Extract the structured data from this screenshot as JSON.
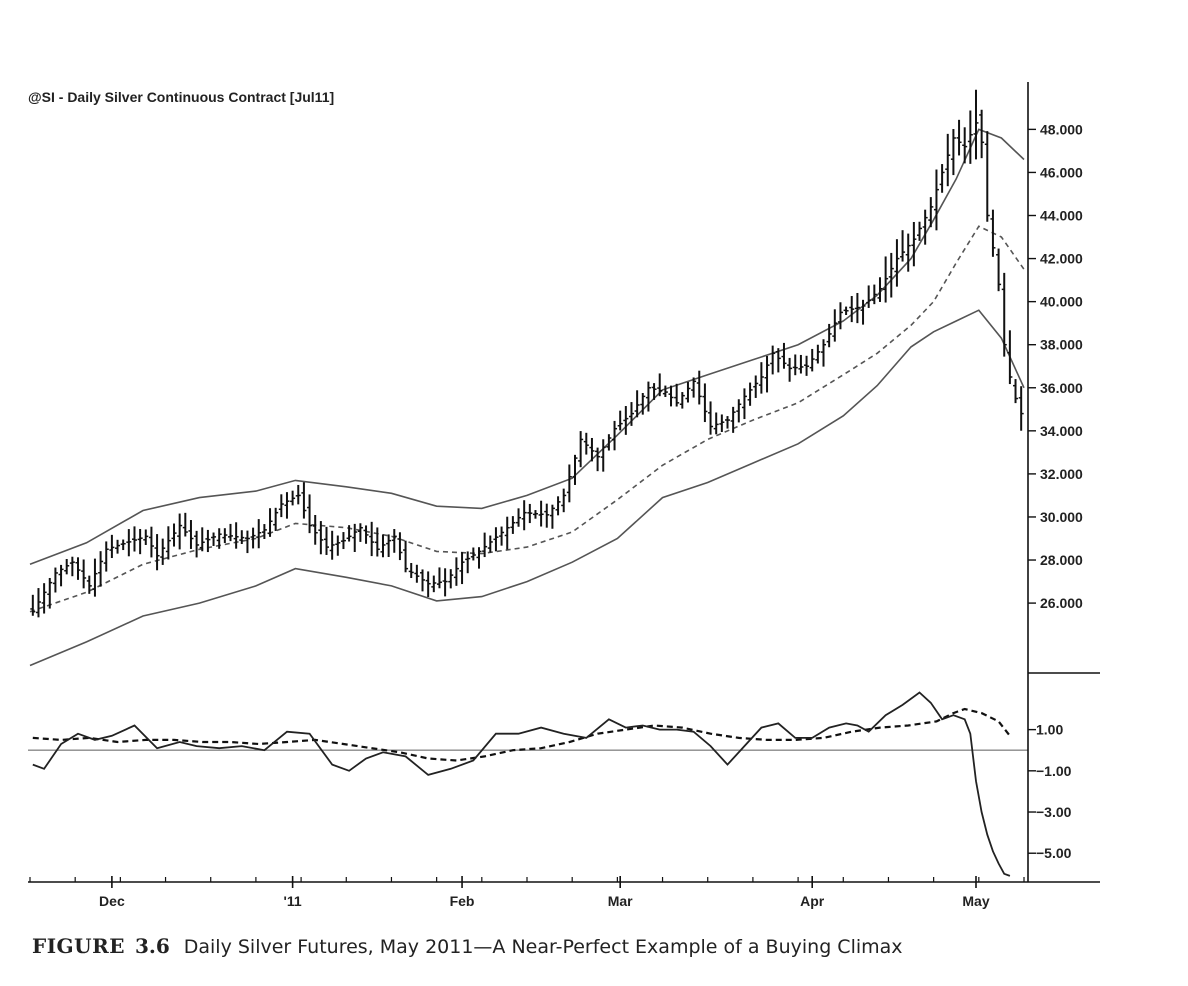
{
  "caption": {
    "label": "FIGURE",
    "number": "3.6",
    "text": "Daily Silver Futures, May 2011—A Near-Perfect Example of a Buying Climax"
  },
  "chart_data": [
    {
      "type": "ohlc",
      "title": "@SI - Daily  Silver Continuous Contract [Jul11]",
      "x_labels": [
        {
          "label": "Dec",
          "bar": 14
        },
        {
          "label": "'11",
          "bar": 46
        },
        {
          "label": "Feb",
          "bar": 76
        },
        {
          "label": "Mar",
          "bar": 104
        },
        {
          "label": "Apr",
          "bar": 138
        },
        {
          "label": "May",
          "bar": 167
        }
      ],
      "y_ticks": [
        "48.000",
        "46.000",
        "44.000",
        "42.000",
        "40.000",
        "38.000",
        "36.000",
        "34.000",
        "32.000",
        "30.000",
        "28.000",
        "26.000"
      ],
      "ylim": [
        22.8,
        50.2
      ],
      "bars_count": 176,
      "close_anchors": [
        [
          0,
          25.6
        ],
        [
          4,
          27.4
        ],
        [
          7,
          27.9
        ],
        [
          10,
          26.8
        ],
        [
          13,
          28.5
        ],
        [
          20,
          29.1
        ],
        [
          22,
          28.2
        ],
        [
          26,
          29.6
        ],
        [
          29,
          28.7
        ],
        [
          33,
          29.2
        ],
        [
          38,
          29.0
        ],
        [
          41,
          29.4
        ],
        [
          44,
          30.6
        ],
        [
          47,
          31.0
        ],
        [
          49,
          29.6
        ],
        [
          52,
          28.6
        ],
        [
          55,
          28.9
        ],
        [
          58,
          29.5
        ],
        [
          61,
          28.5
        ],
        [
          64,
          29.1
        ],
        [
          66,
          27.6
        ],
        [
          70,
          26.9
        ],
        [
          73,
          27.0
        ],
        [
          76,
          27.9
        ],
        [
          79,
          28.4
        ],
        [
          84,
          29.5
        ],
        [
          87,
          30.2
        ],
        [
          91,
          30.1
        ],
        [
          94,
          31.0
        ],
        [
          97,
          33.6
        ],
        [
          100,
          32.8
        ],
        [
          103,
          34.1
        ],
        [
          106,
          34.8
        ],
        [
          109,
          36.0
        ],
        [
          112,
          35.8
        ],
        [
          114,
          35.3
        ],
        [
          117,
          36.3
        ],
        [
          120,
          34.2
        ],
        [
          123,
          34.5
        ],
        [
          126,
          35.6
        ],
        [
          129,
          36.5
        ],
        [
          131,
          37.6
        ],
        [
          134,
          36.9
        ],
        [
          137,
          37.0
        ],
        [
          140,
          38.0
        ],
        [
          143,
          39.5
        ],
        [
          147,
          39.8
        ],
        [
          150,
          40.6
        ],
        [
          153,
          42.0
        ],
        [
          156,
          42.9
        ],
        [
          159,
          44.4
        ],
        [
          161,
          46.0
        ],
        [
          163,
          47.6
        ],
        [
          165,
          47.2
        ],
        [
          167,
          48.3
        ],
        [
          168,
          47.4
        ],
        [
          169,
          44.0
        ],
        [
          170,
          42.5
        ],
        [
          171,
          40.8
        ],
        [
          172,
          38.0
        ],
        [
          173,
          36.5
        ],
        [
          174,
          35.5
        ],
        [
          175,
          34.8
        ]
      ],
      "upper_band": [
        [
          0,
          27.8
        ],
        [
          10,
          28.8
        ],
        [
          20,
          30.3
        ],
        [
          30,
          30.9
        ],
        [
          40,
          31.2
        ],
        [
          47,
          31.7
        ],
        [
          56,
          31.4
        ],
        [
          64,
          31.1
        ],
        [
          72,
          30.5
        ],
        [
          80,
          30.4
        ],
        [
          88,
          31.0
        ],
        [
          96,
          31.8
        ],
        [
          104,
          33.8
        ],
        [
          112,
          35.9
        ],
        [
          120,
          36.6
        ],
        [
          128,
          37.3
        ],
        [
          136,
          38.0
        ],
        [
          144,
          39.1
        ],
        [
          150,
          40.3
        ],
        [
          156,
          42.0
        ],
        [
          160,
          43.8
        ],
        [
          164,
          45.7
        ],
        [
          168,
          48.0
        ],
        [
          172,
          47.6
        ],
        [
          176,
          46.6
        ]
      ],
      "middle_band": [
        [
          0,
          25.6
        ],
        [
          10,
          26.5
        ],
        [
          20,
          27.8
        ],
        [
          30,
          28.5
        ],
        [
          40,
          29.0
        ],
        [
          47,
          29.7
        ],
        [
          56,
          29.5
        ],
        [
          64,
          29.1
        ],
        [
          72,
          28.4
        ],
        [
          80,
          28.3
        ],
        [
          88,
          28.6
        ],
        [
          96,
          29.3
        ],
        [
          104,
          30.8
        ],
        [
          112,
          32.4
        ],
        [
          120,
          33.6
        ],
        [
          128,
          34.5
        ],
        [
          136,
          35.3
        ],
        [
          144,
          36.6
        ],
        [
          150,
          37.6
        ],
        [
          156,
          38.9
        ],
        [
          160,
          40.0
        ],
        [
          164,
          41.8
        ],
        [
          168,
          43.5
        ],
        [
          172,
          43.0
        ],
        [
          176,
          41.5
        ]
      ],
      "lower_band": [
        [
          0,
          23.1
        ],
        [
          10,
          24.2
        ],
        [
          20,
          25.4
        ],
        [
          30,
          26.0
        ],
        [
          40,
          26.8
        ],
        [
          47,
          27.6
        ],
        [
          56,
          27.2
        ],
        [
          64,
          26.8
        ],
        [
          72,
          26.1
        ],
        [
          80,
          26.3
        ],
        [
          88,
          27.0
        ],
        [
          96,
          27.9
        ],
        [
          104,
          29.0
        ],
        [
          112,
          30.9
        ],
        [
          120,
          31.6
        ],
        [
          128,
          32.5
        ],
        [
          136,
          33.4
        ],
        [
          144,
          34.7
        ],
        [
          150,
          36.1
        ],
        [
          156,
          37.9
        ],
        [
          160,
          38.6
        ],
        [
          164,
          39.1
        ],
        [
          168,
          39.6
        ],
        [
          172,
          38.3
        ],
        [
          176,
          36.0
        ]
      ]
    },
    {
      "type": "line",
      "y_ticks": [
        "1.00",
        "-1.00",
        "-3.00",
        "-5.00"
      ],
      "ylim": [
        -6.3,
        3.7
      ],
      "zero_line": 0,
      "series": [
        {
          "style": "solid",
          "points": [
            [
              0,
              -0.7
            ],
            [
              2,
              -0.9
            ],
            [
              5,
              0.3
            ],
            [
              8,
              0.8
            ],
            [
              11,
              0.5
            ],
            [
              14,
              0.7
            ],
            [
              18,
              1.2
            ],
            [
              22,
              0.1
            ],
            [
              26,
              0.4
            ],
            [
              29,
              0.2
            ],
            [
              33,
              0.1
            ],
            [
              37,
              0.2
            ],
            [
              41,
              0.0
            ],
            [
              45,
              0.9
            ],
            [
              49,
              0.8
            ],
            [
              53,
              -0.7
            ],
            [
              56,
              -1.0
            ],
            [
              59,
              -0.4
            ],
            [
              62,
              -0.1
            ],
            [
              66,
              -0.3
            ],
            [
              70,
              -1.2
            ],
            [
              74,
              -0.9
            ],
            [
              78,
              -0.5
            ],
            [
              82,
              0.8
            ],
            [
              86,
              0.8
            ],
            [
              90,
              1.1
            ],
            [
              94,
              0.8
            ],
            [
              98,
              0.6
            ],
            [
              102,
              1.5
            ],
            [
              105,
              1.1
            ],
            [
              108,
              1.2
            ],
            [
              111,
              1.0
            ],
            [
              114,
              1.0
            ],
            [
              117,
              0.9
            ],
            [
              120,
              0.2
            ],
            [
              123,
              -0.7
            ],
            [
              126,
              0.2
            ],
            [
              129,
              1.1
            ],
            [
              132,
              1.3
            ],
            [
              135,
              0.6
            ],
            [
              138,
              0.6
            ],
            [
              141,
              1.1
            ],
            [
              144,
              1.3
            ],
            [
              146,
              1.2
            ],
            [
              148,
              0.9
            ],
            [
              151,
              1.7
            ],
            [
              154,
              2.2
            ],
            [
              157,
              2.8
            ],
            [
              159,
              2.3
            ],
            [
              161,
              1.5
            ],
            [
              163,
              1.7
            ],
            [
              165,
              1.5
            ],
            [
              166,
              0.8
            ],
            [
              167,
              -1.5
            ],
            [
              168,
              -3.0
            ],
            [
              169,
              -4.1
            ],
            [
              170,
              -4.9
            ],
            [
              171,
              -5.5
            ],
            [
              172,
              -6.0
            ],
            [
              173,
              -6.1
            ]
          ]
        },
        {
          "style": "dashed",
          "points": [
            [
              0,
              0.6
            ],
            [
              5,
              0.5
            ],
            [
              10,
              0.6
            ],
            [
              15,
              0.4
            ],
            [
              20,
              0.5
            ],
            [
              25,
              0.5
            ],
            [
              30,
              0.4
            ],
            [
              35,
              0.4
            ],
            [
              40,
              0.3
            ],
            [
              45,
              0.4
            ],
            [
              50,
              0.5
            ],
            [
              55,
              0.3
            ],
            [
              60,
              0.1
            ],
            [
              65,
              -0.1
            ],
            [
              70,
              -0.4
            ],
            [
              75,
              -0.5
            ],
            [
              80,
              -0.3
            ],
            [
              85,
              0.0
            ],
            [
              90,
              0.1
            ],
            [
              95,
              0.4
            ],
            [
              100,
              0.8
            ],
            [
              105,
              1.0
            ],
            [
              110,
              1.2
            ],
            [
              115,
              1.1
            ],
            [
              120,
              0.8
            ],
            [
              125,
              0.6
            ],
            [
              130,
              0.5
            ],
            [
              135,
              0.5
            ],
            [
              140,
              0.6
            ],
            [
              145,
              0.9
            ],
            [
              150,
              1.1
            ],
            [
              155,
              1.2
            ],
            [
              160,
              1.4
            ],
            [
              163,
              1.8
            ],
            [
              165,
              2.0
            ],
            [
              168,
              1.8
            ],
            [
              171,
              1.4
            ],
            [
              173,
              0.7
            ]
          ]
        }
      ]
    }
  ]
}
